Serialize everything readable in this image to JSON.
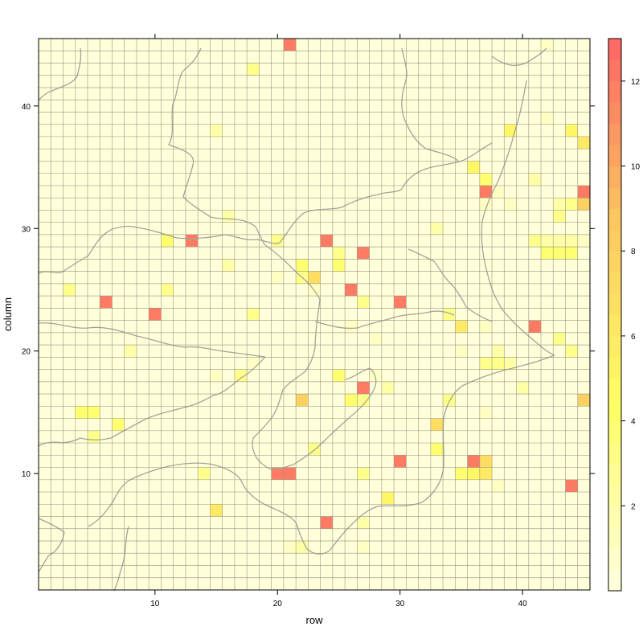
{
  "chart_data": {
    "type": "heatmap",
    "xlabel": "row",
    "ylabel": "column",
    "xlim": [
      0.5,
      45.5
    ],
    "ylim": [
      0.5,
      45.5
    ],
    "x_ticks": [
      10,
      20,
      30,
      40
    ],
    "y_ticks": [
      10,
      20,
      30,
      40
    ],
    "colorbar": {
      "range": [
        0,
        13
      ],
      "ticks": [
        2,
        4,
        6,
        8,
        10,
        12
      ],
      "colors": [
        "#ffffe0",
        "#ffff66",
        "#fcc860",
        "#ff6464"
      ]
    },
    "grid": true,
    "background_value": 0.2,
    "cells": [
      [
        21,
        45,
        12
      ],
      [
        42,
        45,
        1
      ],
      [
        18,
        43,
        3
      ],
      [
        42,
        39,
        1
      ],
      [
        15,
        38,
        2
      ],
      [
        39,
        38,
        5
      ],
      [
        44,
        38,
        5
      ],
      [
        45,
        37,
        6
      ],
      [
        36,
        35,
        5
      ],
      [
        37,
        34,
        4
      ],
      [
        41,
        34,
        2
      ],
      [
        37,
        33,
        12
      ],
      [
        38,
        33,
        1
      ],
      [
        45,
        33,
        12
      ],
      [
        37,
        32,
        1
      ],
      [
        39,
        32,
        1
      ],
      [
        43,
        32,
        2
      ],
      [
        44,
        32,
        3
      ],
      [
        45,
        32,
        8
      ],
      [
        16,
        31,
        2
      ],
      [
        43,
        31,
        3
      ],
      [
        33,
        30,
        2
      ],
      [
        11,
        29,
        4
      ],
      [
        13,
        29,
        12
      ],
      [
        20,
        29,
        3
      ],
      [
        24,
        29,
        12
      ],
      [
        41,
        29,
        3
      ],
      [
        42,
        29,
        2
      ],
      [
        43,
        29,
        2
      ],
      [
        44,
        29,
        2
      ],
      [
        45,
        29,
        1
      ],
      [
        25,
        28,
        3
      ],
      [
        27,
        28,
        12
      ],
      [
        42,
        28,
        4
      ],
      [
        43,
        28,
        4
      ],
      [
        44,
        28,
        4
      ],
      [
        16,
        27,
        2
      ],
      [
        22,
        27,
        4
      ],
      [
        25,
        27,
        4
      ],
      [
        20,
        26,
        1
      ],
      [
        22,
        26,
        3
      ],
      [
        23,
        26,
        7
      ],
      [
        3,
        25,
        3
      ],
      [
        11,
        25,
        3
      ],
      [
        23,
        25,
        1
      ],
      [
        26,
        25,
        12
      ],
      [
        6,
        24,
        12
      ],
      [
        27,
        24,
        3
      ],
      [
        30,
        24,
        12
      ],
      [
        10,
        23,
        12
      ],
      [
        18,
        23,
        3
      ],
      [
        34,
        23,
        3
      ],
      [
        26,
        22,
        1
      ],
      [
        35,
        22,
        6
      ],
      [
        37,
        22,
        1
      ],
      [
        41,
        22,
        12
      ],
      [
        28,
        21,
        1
      ],
      [
        43,
        21,
        3
      ],
      [
        8,
        20,
        2
      ],
      [
        35,
        20,
        1
      ],
      [
        38,
        20,
        2
      ],
      [
        44,
        20,
        3
      ],
      [
        18,
        19,
        1
      ],
      [
        37,
        19,
        3
      ],
      [
        38,
        19,
        3
      ],
      [
        39,
        19,
        2
      ],
      [
        15,
        18,
        1
      ],
      [
        17,
        18,
        3
      ],
      [
        25,
        18,
        4
      ],
      [
        28,
        18,
        1
      ],
      [
        27,
        17,
        12
      ],
      [
        29,
        17,
        2
      ],
      [
        40,
        17,
        2
      ],
      [
        22,
        16,
        8
      ],
      [
        26,
        16,
        4
      ],
      [
        27,
        16,
        3
      ],
      [
        34,
        16,
        3
      ],
      [
        45,
        16,
        8
      ],
      [
        4,
        15,
        4
      ],
      [
        5,
        15,
        4
      ],
      [
        37,
        15,
        1
      ],
      [
        7,
        14,
        4
      ],
      [
        33,
        14,
        7
      ],
      [
        5,
        13,
        3
      ],
      [
        23,
        12,
        3
      ],
      [
        33,
        12,
        4
      ],
      [
        30,
        11,
        12
      ],
      [
        36,
        11,
        12
      ],
      [
        37,
        11,
        7
      ],
      [
        14,
        10,
        3
      ],
      [
        20,
        10,
        12
      ],
      [
        21,
        10,
        12
      ],
      [
        27,
        10,
        3
      ],
      [
        35,
        10,
        4
      ],
      [
        36,
        10,
        5
      ],
      [
        37,
        10,
        6
      ],
      [
        38,
        9,
        1
      ],
      [
        44,
        9,
        12
      ],
      [
        29,
        8,
        5
      ],
      [
        15,
        7,
        6
      ],
      [
        24,
        6,
        12
      ],
      [
        27,
        6,
        2
      ],
      [
        21,
        4,
        1
      ],
      [
        22,
        4,
        2
      ],
      [
        27,
        4,
        1
      ]
    ]
  }
}
